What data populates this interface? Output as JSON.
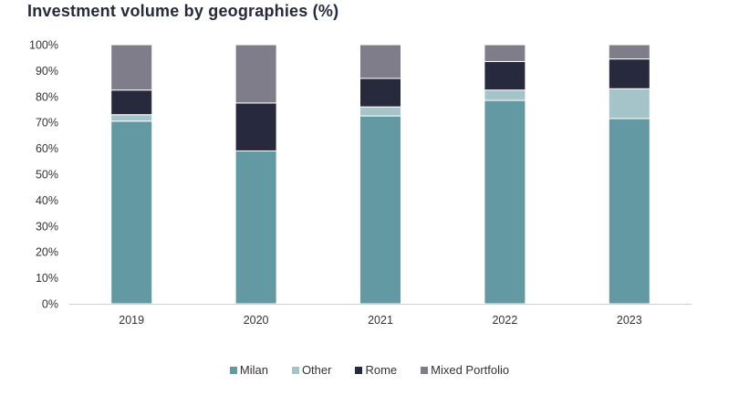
{
  "chart_data": {
    "type": "bar",
    "stacked": true,
    "title": "Investment volume by geographies (%)",
    "xlabel": "",
    "ylabel": "",
    "ylim": [
      0,
      100
    ],
    "yticks": [
      "0%",
      "10%",
      "20%",
      "30%",
      "40%",
      "50%",
      "60%",
      "70%",
      "80%",
      "90%",
      "100%"
    ],
    "categories": [
      "2019",
      "2020",
      "2021",
      "2022",
      "2023"
    ],
    "series": [
      {
        "name": "Milan",
        "color": "#6399a2",
        "values": [
          70.5,
          59,
          72.5,
          78.5,
          71.5
        ]
      },
      {
        "name": "Other",
        "color": "#a5c4c9",
        "values": [
          2.5,
          0,
          3.5,
          4,
          11.5
        ]
      },
      {
        "name": "Rome",
        "color": "#262a3c",
        "values": [
          9.5,
          18.5,
          11,
          11,
          11.5
        ]
      },
      {
        "name": "Mixed Portfolio",
        "color": "#7e7d89",
        "values": [
          17.5,
          22.5,
          13,
          6.5,
          5.5
        ]
      }
    ],
    "legend": "bottom",
    "grid": false
  }
}
